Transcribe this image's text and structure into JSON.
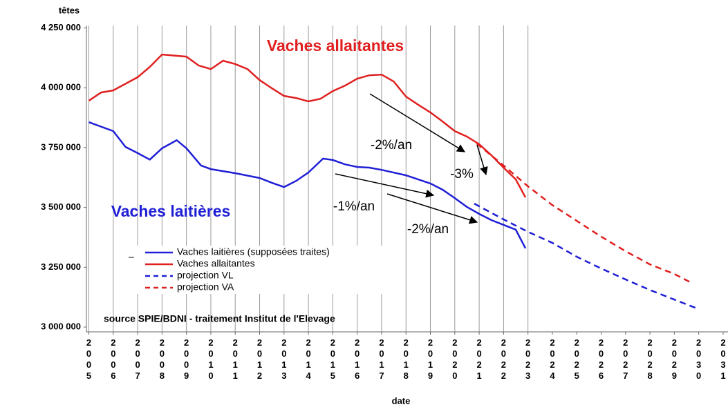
{
  "chart_data": {
    "type": "line",
    "y_label": "têtes",
    "x_label": "date",
    "source": "source SPIE/BDNI - traitement Institut de l'Elevage",
    "annotations": [
      "Vaches allaitantes",
      "Vaches laitières",
      "-2%/an",
      "-3%",
      "-1%/an",
      "-2%/an"
    ],
    "legend_mark": "–",
    "xlim": [
      2004.9,
      2031.2
    ],
    "xticks": [
      2005,
      2006,
      2007,
      2008,
      2009,
      2010,
      2011,
      2012,
      2013,
      2014,
      2015,
      2016,
      2017,
      2018,
      2019,
      2020,
      2021,
      2022,
      2023,
      2024,
      2025,
      2026,
      2027,
      2028,
      2029,
      2030,
      2031
    ],
    "ylim": [
      2980000,
      4260000
    ],
    "yticks": [
      {
        "value": 3000000,
        "label": "3 000 000"
      },
      {
        "value": 3250000,
        "label": "3 250 000"
      },
      {
        "value": 3500000,
        "label": "3 500 000"
      },
      {
        "value": 3750000,
        "label": "3 750 000"
      },
      {
        "value": 4000000,
        "label": "4 000 000"
      },
      {
        "value": 4250000,
        "label": "4 250 000"
      }
    ],
    "grid": true,
    "series": [
      {
        "name": "Vaches laitières (supposées traites)",
        "color": "#1f1fd6",
        "style": "solid",
        "x": [
          2005,
          2006,
          2006.5,
          2007,
          2007.5,
          2008,
          2008.6,
          2009,
          2009.6,
          2010,
          2011,
          2012,
          2012.5,
          2013,
          2013.5,
          2014,
          2014.6,
          2015,
          2015.5,
          2016,
          2016.5,
          2017,
          2018,
          2019,
          2019.5,
          2020,
          2020.5,
          2021,
          2021.5,
          2022,
          2022.5,
          2022.9
        ],
        "values": [
          3856000,
          3819000,
          3753000,
          3727000,
          3700000,
          3747000,
          3781000,
          3747000,
          3675000,
          3660000,
          3643000,
          3623000,
          3603000,
          3585000,
          3611000,
          3646000,
          3704000,
          3698000,
          3680000,
          3669000,
          3666000,
          3657000,
          3634000,
          3600000,
          3574000,
          3539000,
          3502000,
          3473000,
          3447000,
          3427000,
          3407000,
          3329000
        ]
      },
      {
        "name": "Vaches allaitantes",
        "color": "#e02020",
        "style": "solid",
        "x": [
          2005,
          2005.5,
          2006,
          2007,
          2007.5,
          2008,
          2009,
          2009.5,
          2010,
          2010.5,
          2011,
          2011.5,
          2012,
          2012.5,
          2013,
          2013.5,
          2014,
          2014.5,
          2015,
          2015.5,
          2016,
          2016.5,
          2017,
          2017.5,
          2018,
          2018.5,
          2019,
          2019.5,
          2020,
          2020.5,
          2021,
          2021.5,
          2022,
          2022.5,
          2022.9
        ],
        "values": [
          3946000,
          3980000,
          3989000,
          4044000,
          4087000,
          4139000,
          4130000,
          4093000,
          4078000,
          4113000,
          4099000,
          4078000,
          4032000,
          3998000,
          3966000,
          3957000,
          3943000,
          3954000,
          3986000,
          4009000,
          4038000,
          4052000,
          4055000,
          4026000,
          3963000,
          3929000,
          3897000,
          3859000,
          3819000,
          3796000,
          3764000,
          3718000,
          3666000,
          3617000,
          3542000
        ]
      },
      {
        "name": "projection VL",
        "color": "#1f1fd6",
        "style": "dashed",
        "x": [
          2020.8,
          2022,
          2023,
          2024,
          2025,
          2026,
          2027,
          2028,
          2029,
          2030
        ],
        "values": [
          3516000,
          3450000,
          3398000,
          3352000,
          3294000,
          3245000,
          3199000,
          3155000,
          3115000,
          3075000
        ]
      },
      {
        "name": "projection VA",
        "color": "#e02020",
        "style": "dashed",
        "x": [
          2020.9,
          2022,
          2023,
          2024,
          2025,
          2026,
          2027,
          2028,
          2029,
          2029.7
        ],
        "values": [
          3767000,
          3675000,
          3588000,
          3510000,
          3444000,
          3378000,
          3317000,
          3262000,
          3222000,
          3185000
        ]
      }
    ]
  }
}
